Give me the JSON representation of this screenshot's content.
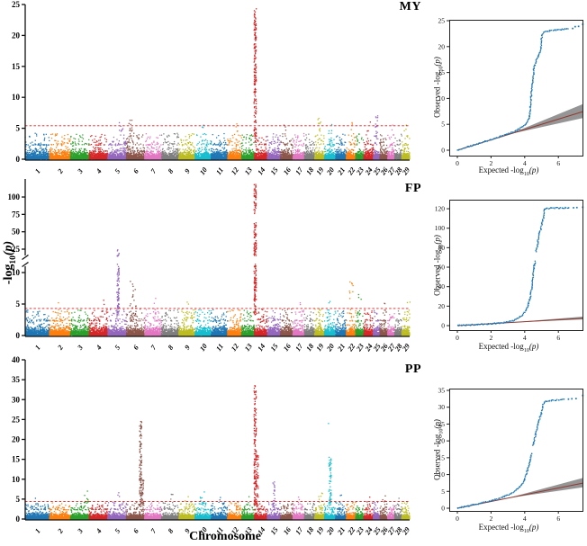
{
  "labels": {
    "x_axis": "Chromosome",
    "qq_x": {
      "pre": "Expected -log",
      "sub": "10",
      "post": "(p)"
    },
    "qq_y": {
      "pre": "Observed -log",
      "sub": "10",
      "post": "(p)"
    },
    "shared_y": {
      "pre": "-log",
      "sub": "10",
      "post": "(p)"
    }
  },
  "chart_data": [
    {
      "type": "scatter",
      "subtype": "manhattan",
      "title": "MY",
      "xlabel": "Chromosome",
      "ylabel": "-log10(p)",
      "ylim": [
        0,
        25
      ],
      "yticks": [
        0,
        5,
        10,
        15,
        20,
        25
      ],
      "threshold": 5.4,
      "threshold_color": "#e41a1c",
      "categories": [
        "1",
        "2",
        "3",
        "4",
        "5",
        "6",
        "7",
        "8",
        "9",
        "10",
        "11",
        "12",
        "13",
        "14",
        "15",
        "16",
        "17",
        "18",
        "19",
        "20",
        "21",
        "22",
        "23",
        "24",
        "25",
        "26",
        "27",
        "28",
        "29"
      ],
      "chrom_rel_width": [
        158,
        137,
        121,
        121,
        121,
        118,
        110,
        113,
        105,
        104,
        107,
        91,
        84,
        84,
        85,
        81,
        75,
        66,
        64,
        72,
        70,
        61,
        52,
        62,
        43,
        51,
        45,
        46,
        51
      ],
      "palette": [
        "#1f77b4",
        "#ff7f0e",
        "#2ca02c",
        "#d62728",
        "#9467bd",
        "#8c564b",
        "#e377c2",
        "#7f7f7f",
        "#bcbd22",
        "#17becf"
      ],
      "peaks": [
        {
          "chr": 5,
          "at": 0.72,
          "shape": "dots",
          "top": 5.9,
          "n": 7
        },
        {
          "chr": 6,
          "at": 0.22,
          "shape": "dots",
          "top": 6.3,
          "n": 10
        },
        {
          "chr": 10,
          "at": 0.5,
          "shape": "dots",
          "top": 5.5,
          "n": 3
        },
        {
          "chr": 12,
          "at": 0.6,
          "shape": "dots",
          "top": 5.7,
          "n": 4
        },
        {
          "chr": 14,
          "at": 0.05,
          "shape": "column",
          "top": 24.3,
          "n": 180
        },
        {
          "chr": 16,
          "at": 0.4,
          "shape": "dots",
          "top": 5.5,
          "n": 3
        },
        {
          "chr": 19,
          "at": 0.5,
          "shape": "dots",
          "top": 6.6,
          "n": 9
        },
        {
          "chr": 20,
          "at": 0.5,
          "shape": "dots",
          "top": 5.6,
          "n": 3
        },
        {
          "chr": 22,
          "at": 0.5,
          "shape": "dots",
          "top": 5.9,
          "n": 3
        },
        {
          "chr": 24,
          "at": 0.5,
          "shape": "dots",
          "top": 6.0,
          "n": 3
        },
        {
          "chr": 25,
          "at": 0.5,
          "shape": "column",
          "top": 7.0,
          "n": 14
        },
        {
          "chr": 27,
          "at": 0.5,
          "shape": "dots",
          "top": 5.5,
          "n": 2
        },
        {
          "chr": 29,
          "at": 0.5,
          "shape": "dots",
          "top": 5.5,
          "n": 3
        }
      ]
    },
    {
      "type": "scatter",
      "subtype": "manhattan",
      "title": "FP",
      "xlabel": "Chromosome",
      "ylabel": "-log10(p)",
      "broken_axis": {
        "lower_ticks": [
          0,
          5,
          10
        ],
        "upper_ticks": [
          25,
          50,
          75,
          100
        ],
        "lower_range": [
          0,
          11.5
        ],
        "upper_range": [
          15,
          125
        ]
      },
      "threshold": 4.3,
      "threshold_color": "#e41a1c",
      "categories": [
        "1",
        "2",
        "3",
        "4",
        "5",
        "6",
        "7",
        "8",
        "9",
        "10",
        "11",
        "12",
        "13",
        "14",
        "15",
        "16",
        "17",
        "18",
        "19",
        "20",
        "21",
        "22",
        "23",
        "24",
        "25",
        "26",
        "27",
        "28",
        "29"
      ],
      "chrom_rel_width": [
        158,
        137,
        121,
        121,
        121,
        118,
        110,
        113,
        105,
        104,
        107,
        91,
        84,
        84,
        85,
        81,
        75,
        66,
        64,
        72,
        70,
        61,
        52,
        62,
        43,
        51,
        45,
        46,
        51
      ],
      "palette": [
        "#1f77b4",
        "#ff7f0e",
        "#2ca02c",
        "#d62728",
        "#9467bd",
        "#8c564b",
        "#e377c2",
        "#7f7f7f",
        "#bcbd22",
        "#17becf"
      ],
      "peaks": [
        {
          "chr": 2,
          "at": 0.5,
          "shape": "dots",
          "top": 5.2,
          "n": 3
        },
        {
          "chr": 4,
          "at": 0.8,
          "shape": "dots",
          "top": 5.6,
          "n": 4
        },
        {
          "chr": 5,
          "at": 0.55,
          "shape": "column",
          "top": 11.3,
          "n": 80
        },
        {
          "chr": 5,
          "at": 0.55,
          "shape": "column",
          "lo": 15,
          "top": 24,
          "n": 9
        },
        {
          "chr": 6,
          "at": 0.3,
          "shape": "dots",
          "top": 8.6,
          "n": 12
        },
        {
          "chr": 6,
          "at": 0.42,
          "shape": "dots",
          "top": 7.8,
          "n": 8
        },
        {
          "chr": 7,
          "at": 0.55,
          "shape": "dots",
          "top": 5.9,
          "n": 5
        },
        {
          "chr": 9,
          "at": 0.5,
          "shape": "dots",
          "top": 5.3,
          "n": 4
        },
        {
          "chr": 14,
          "at": 0.05,
          "shape": "column",
          "top": 11.3,
          "n": 90
        },
        {
          "chr": 14,
          "at": 0.05,
          "shape": "column",
          "lo": 15,
          "top": 118,
          "n": 120,
          "gap": [
            63,
            76
          ]
        },
        {
          "chr": 17,
          "at": 0.5,
          "shape": "dots",
          "top": 5.2,
          "n": 3
        },
        {
          "chr": 20,
          "at": 0.5,
          "shape": "dots",
          "top": 5.4,
          "n": 3
        },
        {
          "chr": 22,
          "at": 0.5,
          "shape": "dots",
          "top": 8.5,
          "n": 9
        },
        {
          "chr": 23,
          "at": 0.45,
          "shape": "dots",
          "top": 6.5,
          "n": 9
        },
        {
          "chr": 26,
          "at": 0.5,
          "shape": "dots",
          "top": 5.1,
          "n": 2
        },
        {
          "chr": 29,
          "at": 0.85,
          "shape": "dots",
          "top": 5.3,
          "n": 4
        }
      ]
    },
    {
      "type": "scatter",
      "subtype": "manhattan",
      "title": "PP",
      "xlabel": "Chromosome",
      "ylabel": "-log10(p)",
      "ylim": [
        0,
        40
      ],
      "yticks": [
        0,
        5,
        10,
        15,
        20,
        25,
        30,
        35,
        40
      ],
      "threshold": 4.4,
      "threshold_color": "#e41a1c",
      "categories": [
        "1",
        "2",
        "3",
        "4",
        "5",
        "6",
        "7",
        "8",
        "9",
        "10",
        "11",
        "12",
        "13",
        "14",
        "15",
        "16",
        "17",
        "18",
        "19",
        "20",
        "21",
        "22",
        "23",
        "24",
        "25",
        "26",
        "27",
        "28",
        "29"
      ],
      "chrom_rel_width": [
        158,
        137,
        121,
        121,
        121,
        118,
        110,
        113,
        105,
        104,
        107,
        91,
        84,
        84,
        85,
        81,
        75,
        66,
        64,
        72,
        70,
        61,
        52,
        62,
        43,
        51,
        45,
        46,
        51
      ],
      "palette": [
        "#1f77b4",
        "#ff7f0e",
        "#2ca02c",
        "#d62728",
        "#9467bd",
        "#8c564b",
        "#e377c2",
        "#7f7f7f",
        "#bcbd22",
        "#17becf"
      ],
      "peaks": [
        {
          "chr": 1,
          "at": 0.5,
          "shape": "dots",
          "top": 5.2,
          "n": 2
        },
        {
          "chr": 3,
          "at": 0.85,
          "shape": "dots",
          "top": 7.0,
          "n": 9
        },
        {
          "chr": 5,
          "at": 0.6,
          "shape": "dots",
          "top": 6.6,
          "n": 5
        },
        {
          "chr": 6,
          "at": 0.78,
          "shape": "column",
          "top": 24.5,
          "n": 110
        },
        {
          "chr": 6,
          "at": 0.9,
          "shape": "column",
          "top": 9.8,
          "n": 32
        },
        {
          "chr": 8,
          "at": 0.55,
          "shape": "dots",
          "top": 6.2,
          "n": 6
        },
        {
          "chr": 9,
          "at": 0.5,
          "shape": "dots",
          "top": 5.6,
          "n": 3
        },
        {
          "chr": 10,
          "at": 0.45,
          "shape": "dots",
          "top": 6.8,
          "n": 9
        },
        {
          "chr": 11,
          "at": 0.5,
          "shape": "dots",
          "top": 5.4,
          "n": 3
        },
        {
          "chr": 13,
          "at": 0.5,
          "shape": "dots",
          "top": 5.6,
          "n": 3
        },
        {
          "chr": 14,
          "at": 0.05,
          "shape": "column",
          "top": 33.5,
          "n": 160
        },
        {
          "chr": 14,
          "at": 0.2,
          "shape": "column",
          "top": 16.0,
          "n": 50
        },
        {
          "chr": 15,
          "at": 0.5,
          "shape": "column",
          "top": 9.3,
          "n": 20
        },
        {
          "chr": 17,
          "at": 0.5,
          "shape": "dots",
          "top": 5.5,
          "n": 3
        },
        {
          "chr": 19,
          "at": 0.6,
          "shape": "dots",
          "top": 6.5,
          "n": 7
        },
        {
          "chr": 20,
          "at": 0.5,
          "shape": "column",
          "top": 15.5,
          "n": 60
        },
        {
          "chr": 20,
          "at": 0.5,
          "shape": "dots",
          "lo": 23.8,
          "top": 24.0,
          "n": 1
        },
        {
          "chr": 21,
          "at": 0.5,
          "shape": "dots",
          "top": 6.0,
          "n": 4
        },
        {
          "chr": 24,
          "at": 0.5,
          "shape": "dots",
          "top": 5.5,
          "n": 3
        },
        {
          "chr": 26,
          "at": 0.5,
          "shape": "dots",
          "top": 5.8,
          "n": 5
        },
        {
          "chr": 28,
          "at": 0.5,
          "shape": "dots",
          "top": 5.2,
          "n": 2
        }
      ]
    },
    {
      "type": "scatter",
      "subtype": "qq",
      "trait": "MY",
      "xlabel": "Expected -log10(p)",
      "ylabel": "Observed -log10(p)",
      "xlim": [
        0,
        7.5
      ],
      "ylim": [
        0,
        25
      ],
      "xticks": [
        0,
        2,
        4,
        6
      ],
      "yticks": [
        0,
        5,
        10,
        15,
        20,
        25
      ],
      "dot_color": "#1f77b4",
      "line_color": "#8f3a32",
      "band": {
        "x0": 3.1,
        "x1": 7.45,
        "upper": 8.9,
        "lower": 6.2,
        "color": "#8a8a8a"
      },
      "curve": [
        [
          0,
          0
        ],
        [
          1,
          1
        ],
        [
          2,
          2.05
        ],
        [
          3,
          3.15
        ],
        [
          3.5,
          3.75
        ],
        [
          3.9,
          4.6
        ],
        [
          4.1,
          5.1
        ],
        [
          4.25,
          6
        ],
        [
          4.3,
          7
        ],
        [
          4.35,
          9
        ],
        [
          4.4,
          11
        ],
        [
          4.45,
          12.8
        ],
        [
          4.5,
          13.3
        ],
        [
          4.55,
          15.8
        ],
        [
          4.6,
          16.4
        ],
        [
          4.7,
          17.6
        ],
        [
          4.8,
          18.2
        ],
        [
          4.9,
          18.9
        ],
        [
          4.95,
          19.3
        ],
        [
          5.0,
          21.3
        ],
        [
          5.05,
          22.4
        ],
        [
          5.1,
          22.7
        ],
        [
          5.25,
          22.9
        ],
        [
          5.5,
          23.05
        ],
        [
          5.9,
          23.2
        ],
        [
          6.3,
          23.35
        ],
        [
          6.6,
          23.45
        ]
      ],
      "outliers": [
        [
          6.85,
          23.5
        ],
        [
          7.0,
          23.85
        ],
        [
          7.2,
          23.9
        ],
        [
          7.45,
          24.3
        ]
      ]
    },
    {
      "type": "scatter",
      "subtype": "qq",
      "trait": "FP",
      "xlabel": "Expected -log10(p)",
      "ylabel": "Observed -log10(p)",
      "xlim": [
        0,
        7.5
      ],
      "ylim": [
        0,
        125
      ],
      "xticks": [
        0,
        2,
        4,
        6
      ],
      "yticks": [
        0,
        20,
        40,
        60,
        80,
        100,
        120
      ],
      "dot_color": "#1f77b4",
      "line_color": "#8f3a32",
      "band": {
        "x0": 3.1,
        "x1": 7.45,
        "upper": 9.2,
        "lower": 6.3,
        "color": "#8a8a8a"
      },
      "gaps": [
        [
          66,
          76
        ]
      ],
      "curve": [
        [
          0,
          0
        ],
        [
          1,
          0.95
        ],
        [
          2,
          1.95
        ],
        [
          2.6,
          2.7
        ],
        [
          3,
          3.6
        ],
        [
          3.3,
          5
        ],
        [
          3.6,
          7.5
        ],
        [
          3.85,
          11
        ],
        [
          4.0,
          14
        ],
        [
          4.1,
          17
        ],
        [
          4.2,
          21
        ],
        [
          4.3,
          27
        ],
        [
          4.4,
          36
        ],
        [
          4.45,
          43
        ],
        [
          4.5,
          52
        ],
        [
          4.55,
          60
        ],
        [
          4.6,
          64
        ],
        [
          4.62,
          66
        ],
        [
          4.68,
          76
        ],
        [
          4.72,
          80
        ],
        [
          4.78,
          85
        ],
        [
          4.82,
          92
        ],
        [
          4.86,
          96
        ],
        [
          4.95,
          98
        ],
        [
          5.0,
          103
        ],
        [
          5.05,
          107
        ],
        [
          5.1,
          110
        ],
        [
          5.13,
          114
        ],
        [
          5.17,
          118
        ],
        [
          5.2,
          120
        ],
        [
          5.4,
          120.4
        ],
        [
          5.8,
          120.7
        ],
        [
          6.3,
          120.9
        ],
        [
          6.7,
          121
        ]
      ],
      "outliers": [
        [
          6.9,
          121
        ],
        [
          7.1,
          121.2
        ],
        [
          7.45,
          121.5
        ]
      ]
    },
    {
      "type": "scatter",
      "subtype": "qq",
      "trait": "PP",
      "xlabel": "Expected -log10(p)",
      "ylabel": "Observed -log10(p)",
      "xlim": [
        0,
        7.5
      ],
      "ylim": [
        0,
        35
      ],
      "xticks": [
        0,
        2,
        4,
        6
      ],
      "yticks": [
        0,
        5,
        10,
        15,
        20,
        25,
        30,
        35
      ],
      "dot_color": "#1f77b4",
      "line_color": "#8f3a32",
      "band": {
        "x0": 3.0,
        "x1": 7.45,
        "upper": 9.0,
        "lower": 6.2,
        "color": "#8a8a8a"
      },
      "gaps": [
        [
          16.5,
          18.4
        ]
      ],
      "curve": [
        [
          0,
          0
        ],
        [
          1,
          1.05
        ],
        [
          2,
          2.2
        ],
        [
          2.5,
          2.9
        ],
        [
          3,
          3.9
        ],
        [
          3.4,
          5
        ],
        [
          3.7,
          6.3
        ],
        [
          3.95,
          8
        ],
        [
          4.1,
          10
        ],
        [
          4.2,
          12
        ],
        [
          4.3,
          13.8
        ],
        [
          4.38,
          15.3
        ],
        [
          4.42,
          16.3
        ],
        [
          4.5,
          18.6
        ],
        [
          4.58,
          20.3
        ],
        [
          4.65,
          22
        ],
        [
          4.7,
          23.2
        ],
        [
          4.75,
          24.3
        ],
        [
          4.82,
          25.8
        ],
        [
          4.88,
          26.6
        ],
        [
          4.95,
          27.6
        ],
        [
          5.0,
          28.3
        ],
        [
          5.05,
          29.6
        ],
        [
          5.1,
          31
        ],
        [
          5.15,
          31.5
        ],
        [
          5.3,
          31.8
        ],
        [
          5.6,
          32
        ],
        [
          6.0,
          32.15
        ],
        [
          6.4,
          32.35
        ]
      ],
      "outliers": [
        [
          6.6,
          32.4
        ],
        [
          6.8,
          32.5
        ],
        [
          7.05,
          32.55
        ],
        [
          7.45,
          33.5
        ]
      ]
    }
  ]
}
